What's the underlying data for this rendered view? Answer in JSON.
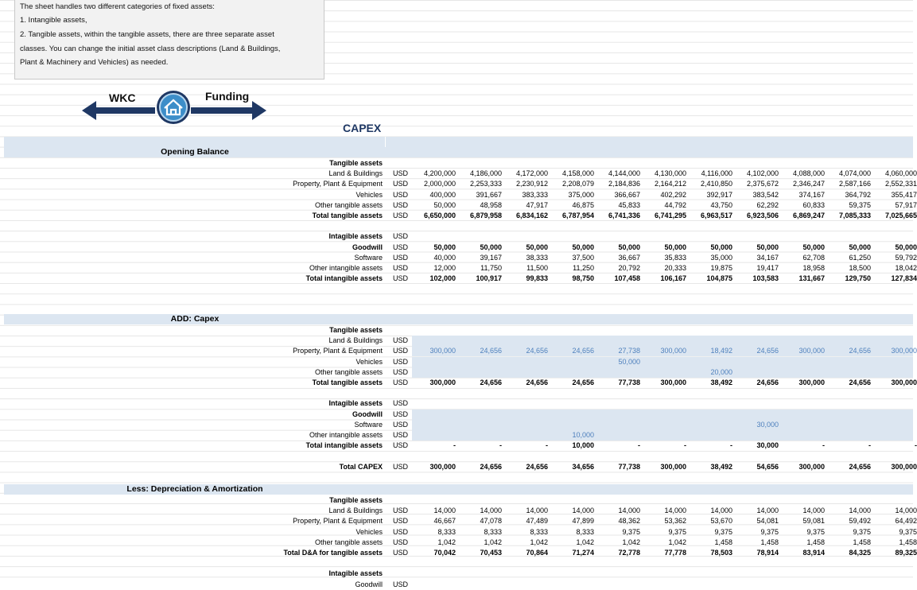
{
  "note": {
    "lines": [
      "The sheet handles two different categories of fixed assets:",
      "1. Intangible assets,",
      "2. Tangible assets, within the tangible assets, there are three separate asset",
      "classes. You can change the initial asset class descriptions (Land & Buildings,",
      "Plant & Machinery and Vehicles) as needed."
    ]
  },
  "nav": {
    "back": "WKC",
    "forward": "Funding"
  },
  "title": "CAPEX",
  "sections": [
    {
      "title": "Opening Balance",
      "groups": [
        {
          "title": "Tangible assets",
          "rows": [
            {
              "label": "Land & Buildings",
              "unit": "USD",
              "values": [
                "4,200,000",
                "4,186,000",
                "4,172,000",
                "4,158,000",
                "4,144,000",
                "4,130,000",
                "4,116,000",
                "4,102,000",
                "4,088,000",
                "4,074,000",
                "4,060,000"
              ]
            },
            {
              "label": "Property, Plant & Equipment",
              "unit": "USD",
              "values": [
                "2,000,000",
                "2,253,333",
                "2,230,912",
                "2,208,079",
                "2,184,836",
                "2,164,212",
                "2,410,850",
                "2,375,672",
                "2,346,247",
                "2,587,166",
                "2,552,331"
              ]
            },
            {
              "label": "Vehicles",
              "unit": "USD",
              "values": [
                "400,000",
                "391,667",
                "383,333",
                "375,000",
                "366,667",
                "402,292",
                "392,917",
                "383,542",
                "374,167",
                "364,792",
                "355,417"
              ]
            },
            {
              "label": "Other tangible assets",
              "unit": "USD",
              "values": [
                "50,000",
                "48,958",
                "47,917",
                "46,875",
                "45,833",
                "44,792",
                "43,750",
                "62,292",
                "60,833",
                "59,375",
                "57,917"
              ]
            },
            {
              "label": "Total tangible assets",
              "unit": "USD",
              "bold": true,
              "values": [
                "6,650,000",
                "6,879,958",
                "6,834,162",
                "6,787,954",
                "6,741,336",
                "6,741,295",
                "6,963,517",
                "6,923,506",
                "6,869,247",
                "7,085,333",
                "7,025,665"
              ]
            }
          ]
        },
        {
          "title": "Intagible assets",
          "unit": "USD",
          "rows": [
            {
              "label": "Goodwill",
              "unit": "USD",
              "bold": true,
              "values": [
                "50,000",
                "50,000",
                "50,000",
                "50,000",
                "50,000",
                "50,000",
                "50,000",
                "50,000",
                "50,000",
                "50,000",
                "50,000"
              ]
            },
            {
              "label": "Software",
              "unit": "USD",
              "values": [
                "40,000",
                "39,167",
                "38,333",
                "37,500",
                "36,667",
                "35,833",
                "35,000",
                "34,167",
                "62,708",
                "61,250",
                "59,792"
              ]
            },
            {
              "label": "Other intangible assets",
              "unit": "USD",
              "values": [
                "12,000",
                "11,750",
                "11,500",
                "11,250",
                "20,792",
                "20,333",
                "19,875",
                "19,417",
                "18,958",
                "18,500",
                "18,042"
              ]
            },
            {
              "label": "Total intangible assets",
              "unit": "USD",
              "bold": true,
              "values": [
                "102,000",
                "100,917",
                "99,833",
                "98,750",
                "107,458",
                "106,167",
                "104,875",
                "103,583",
                "131,667",
                "129,750",
                "127,834"
              ]
            }
          ]
        }
      ]
    },
    {
      "title": "ADD: Capex",
      "groups": [
        {
          "title": "Tangible assets",
          "rows": [
            {
              "label": "Land & Buildings",
              "unit": "USD",
              "input": true,
              "values": [
                null,
                null,
                null,
                null,
                null,
                null,
                null,
                null,
                null,
                null,
                null
              ]
            },
            {
              "label": "Property, Plant & Equipment",
              "unit": "USD",
              "input": true,
              "values": [
                "300,000",
                "24,656",
                "24,656",
                "24,656",
                "27,738",
                "300,000",
                "18,492",
                "24,656",
                "300,000",
                "24,656",
                "300,000"
              ]
            },
            {
              "label": "Vehicles",
              "unit": "USD",
              "input": true,
              "values": [
                null,
                null,
                null,
                null,
                "50,000",
                null,
                null,
                null,
                null,
                null,
                null
              ]
            },
            {
              "label": "Other tangible assets",
              "unit": "USD",
              "input": true,
              "values": [
                null,
                null,
                null,
                null,
                null,
                null,
                "20,000",
                null,
                null,
                null,
                null
              ]
            },
            {
              "label": "Total tangible assets",
              "unit": "USD",
              "bold": true,
              "values": [
                "300,000",
                "24,656",
                "24,656",
                "24,656",
                "77,738",
                "300,000",
                "38,492",
                "24,656",
                "300,000",
                "24,656",
                "300,000"
              ]
            }
          ]
        },
        {
          "title": "Intagible assets",
          "unit": "USD",
          "rows": [
            {
              "label": "Goodwill",
              "unit": "USD",
              "bold": true,
              "input": true,
              "values": [
                null,
                null,
                null,
                null,
                null,
                null,
                null,
                null,
                null,
                null,
                null
              ]
            },
            {
              "label": "Software",
              "unit": "USD",
              "input": true,
              "values": [
                null,
                null,
                null,
                null,
                null,
                null,
                null,
                "30,000",
                null,
                null,
                null
              ]
            },
            {
              "label": "Other intangible assets",
              "unit": "USD",
              "input": true,
              "values": [
                null,
                null,
                null,
                "10,000",
                null,
                null,
                null,
                null,
                null,
                null,
                null
              ]
            },
            {
              "label": "Total intangible assets",
              "unit": "USD",
              "bold": true,
              "values": [
                "-",
                "-",
                "-",
                "10,000",
                "-",
                "-",
                "-",
                "30,000",
                "-",
                "-",
                "-"
              ]
            }
          ]
        },
        {
          "rows": [
            {
              "label": "Total CAPEX",
              "unit": "USD",
              "bold": true,
              "values": [
                "300,000",
                "24,656",
                "24,656",
                "34,656",
                "77,738",
                "300,000",
                "38,492",
                "54,656",
                "300,000",
                "24,656",
                "300,000"
              ]
            }
          ]
        }
      ]
    },
    {
      "title": "Less: Depreciation & Amortization",
      "groups": [
        {
          "title": "Tangible assets",
          "rows": [
            {
              "label": "Land & Buildings",
              "unit": "USD",
              "values": [
                "14,000",
                "14,000",
                "14,000",
                "14,000",
                "14,000",
                "14,000",
                "14,000",
                "14,000",
                "14,000",
                "14,000",
                "14,000"
              ]
            },
            {
              "label": "Property, Plant & Equipment",
              "unit": "USD",
              "values": [
                "46,667",
                "47,078",
                "47,489",
                "47,899",
                "48,362",
                "53,362",
                "53,670",
                "54,081",
                "59,081",
                "59,492",
                "64,492"
              ]
            },
            {
              "label": "Vehicles",
              "unit": "USD",
              "values": [
                "8,333",
                "8,333",
                "8,333",
                "8,333",
                "9,375",
                "9,375",
                "9,375",
                "9,375",
                "9,375",
                "9,375",
                "9,375"
              ]
            },
            {
              "label": "Other tangible assets",
              "unit": "USD",
              "values": [
                "1,042",
                "1,042",
                "1,042",
                "1,042",
                "1,042",
                "1,042",
                "1,458",
                "1,458",
                "1,458",
                "1,458",
                "1,458"
              ]
            },
            {
              "label": "Total D&A for tangible assets",
              "unit": "USD",
              "bold": true,
              "values": [
                "70,042",
                "70,453",
                "70,864",
                "71,274",
                "72,778",
                "77,778",
                "78,503",
                "78,914",
                "83,914",
                "84,325",
                "89,325"
              ]
            }
          ]
        },
        {
          "title": "Intagible assets",
          "rows": [
            {
              "label": "Goodwill",
              "unit": "USD",
              "values": [
                null,
                null,
                null,
                null,
                null,
                null,
                null,
                null,
                null,
                null,
                null
              ]
            }
          ]
        }
      ]
    }
  ]
}
